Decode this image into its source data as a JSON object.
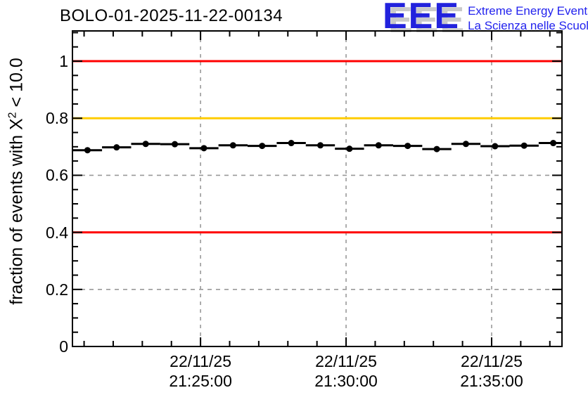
{
  "header": {
    "title": "BOLO-01-2025-11-22-00134",
    "logo": {
      "letters": "EEE",
      "line1": "Extreme Energy Events",
      "line2": "La Scienza nelle Scuole"
    }
  },
  "y_axis": {
    "label_prefix": "fraction of events with X",
    "label_sup": "2",
    "label_suffix": " < 10.0"
  },
  "colors": {
    "limit_line_red": "#ff0000",
    "warn_line_orange": "#ffcc00",
    "grid_gray": "#999999",
    "data_black": "#000000",
    "logo_blue": "#2222dd",
    "logo_shadow_gray": "#c9c9c9"
  },
  "chart_data": {
    "type": "scatter",
    "title": "BOLO-01-2025-11-22-00134",
    "ylabel": "fraction of events with X^2 < 10.0",
    "ylim": [
      0,
      1.106
    ],
    "grid": true,
    "x_axis": {
      "date_label": "22/11/25",
      "range_start": "21:20:36",
      "range_end": "21:37:25",
      "major_ticks": [
        "21:25:00",
        "21:30:00",
        "21:35:00"
      ],
      "minor_tick_interval_s": 60
    },
    "y_axis_ticks": {
      "labels": [
        "0",
        "0.2",
        "0.4",
        "0.6",
        "0.8",
        "1"
      ],
      "values": [
        0,
        0.2,
        0.4,
        0.6,
        0.8,
        1.0
      ],
      "minor_step": 0.05
    },
    "reference_lines": [
      {
        "y": 1.0,
        "color": "#ff0000"
      },
      {
        "y": 0.8,
        "color": "#ffcc00"
      },
      {
        "y": 0.4,
        "color": "#ff0000"
      }
    ],
    "series": [
      {
        "name": "fraction of events with X^2 < 10.0",
        "marker": "filled-circle",
        "color": "#000000",
        "x_bin_halfwidth_s": 30,
        "y_err": 0.008,
        "points": [
          {
            "time": "21:21:07",
            "value": 0.688
          },
          {
            "time": "21:22:07",
            "value": 0.698
          },
          {
            "time": "21:23:07",
            "value": 0.71
          },
          {
            "time": "21:24:07",
            "value": 0.709
          },
          {
            "time": "21:25:07",
            "value": 0.695
          },
          {
            "time": "21:26:07",
            "value": 0.705
          },
          {
            "time": "21:27:07",
            "value": 0.703
          },
          {
            "time": "21:28:07",
            "value": 0.713
          },
          {
            "time": "21:29:07",
            "value": 0.705
          },
          {
            "time": "21:30:07",
            "value": 0.693
          },
          {
            "time": "21:31:07",
            "value": 0.705
          },
          {
            "time": "21:32:07",
            "value": 0.703
          },
          {
            "time": "21:33:07",
            "value": 0.692
          },
          {
            "time": "21:34:07",
            "value": 0.71
          },
          {
            "time": "21:35:07",
            "value": 0.702
          },
          {
            "time": "21:36:07",
            "value": 0.704
          },
          {
            "time": "21:37:07",
            "value": 0.713
          }
        ]
      }
    ]
  }
}
